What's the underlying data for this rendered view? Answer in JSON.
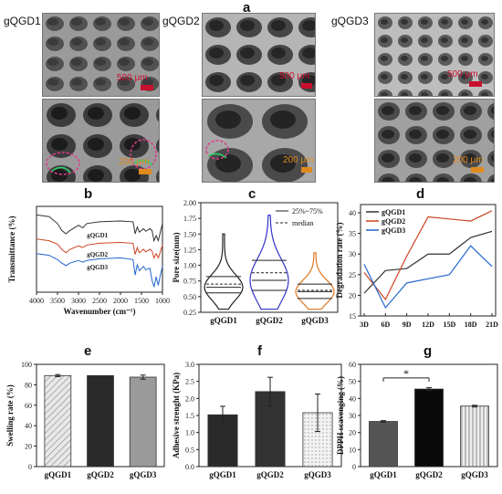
{
  "panel_letters": [
    "a",
    "b",
    "c",
    "d",
    "e",
    "f",
    "g"
  ],
  "sem": {
    "labels": [
      "gQGD1",
      "gQGD2",
      "gQGD3"
    ],
    "scale_top": "500 μm",
    "scale_bottom": "200 μm"
  },
  "colors": {
    "gqgd1": "#333333",
    "gqgd2": "#cc4422",
    "gqgd3": "#2266cc",
    "violin1": "#222222",
    "violin2": "#3333cc",
    "violin3": "#dd7722"
  },
  "chart_data": [
    {
      "id": "b",
      "type": "line",
      "xlabel": "Wavenumber (cm⁻¹)",
      "ylabel": "Transmittance (%)",
      "xlim": [
        4000,
        1000
      ],
      "x_ticks": [
        4000,
        3500,
        3000,
        2500,
        2000,
        1500,
        1000
      ],
      "series": [
        {
          "name": "gQGD1",
          "x": [
            4000,
            3700,
            3500,
            3400,
            3300,
            3200,
            3000,
            2900,
            2800,
            2500,
            2000,
            1700,
            1650,
            1600,
            1550,
            1450,
            1400,
            1300,
            1250,
            1200,
            1150,
            1100,
            1050,
            1000
          ],
          "y": [
            90,
            88,
            80,
            72,
            68,
            72,
            78,
            75,
            80,
            82,
            83,
            82,
            68,
            76,
            70,
            74,
            71,
            74,
            72,
            60,
            66,
            60,
            70,
            80
          ]
        },
        {
          "name": "gQGD2",
          "x": [
            4000,
            3700,
            3500,
            3400,
            3300,
            3200,
            3000,
            2900,
            2800,
            2500,
            2000,
            1700,
            1650,
            1600,
            1550,
            1450,
            1400,
            1300,
            1250,
            1200,
            1150,
            1100,
            1050,
            1000
          ],
          "y": [
            62,
            60,
            56,
            50,
            46,
            50,
            54,
            52,
            55,
            57,
            58,
            57,
            44,
            52,
            46,
            50,
            47,
            50,
            48,
            40,
            45,
            40,
            47,
            55
          ]
        },
        {
          "name": "gQGD3",
          "x": [
            4000,
            3700,
            3500,
            3400,
            3300,
            3200,
            3000,
            2900,
            2800,
            2500,
            2000,
            1700,
            1650,
            1600,
            1550,
            1450,
            1400,
            1300,
            1250,
            1200,
            1150,
            1100,
            1050,
            1000
          ],
          "y": [
            45,
            43,
            38,
            34,
            31,
            34,
            37,
            35,
            37,
            39,
            40,
            38,
            20,
            32,
            25,
            30,
            26,
            28,
            14,
            6,
            18,
            8,
            20,
            30
          ]
        }
      ]
    },
    {
      "id": "c",
      "type": "violin",
      "ylabel": "Pore size(mm)",
      "ylim": [
        0.25,
        2.0
      ],
      "y_ticks": [
        0.25,
        0.5,
        0.75,
        1.0,
        1.25,
        1.5,
        1.75,
        2.0
      ],
      "legend": [
        "25%~75%",
        "median"
      ],
      "groups": [
        {
          "name": "gQGD1",
          "min": 0.3,
          "max": 1.5,
          "q1": 0.56,
          "q3": 0.82,
          "median": 0.65,
          "mean": 0.7
        },
        {
          "name": "gQGD2",
          "min": 0.3,
          "max": 1.8,
          "q1": 0.6,
          "q3": 1.08,
          "median": 0.76,
          "mean": 0.88
        },
        {
          "name": "gQGD3",
          "min": 0.3,
          "max": 1.2,
          "q1": 0.47,
          "q3": 0.7,
          "median": 0.58,
          "mean": 0.6
        }
      ]
    },
    {
      "id": "d",
      "type": "line",
      "ylabel": "Degradation rate (%)",
      "ylim": [
        15,
        42
      ],
      "y_ticks": [
        15,
        20,
        25,
        30,
        35,
        40
      ],
      "categories": [
        "3D",
        "6D",
        "9D",
        "12D",
        "15D",
        "18D",
        "21D"
      ],
      "series": [
        {
          "name": "gQGD1",
          "values": [
            20.5,
            26,
            26.5,
            30,
            30,
            34,
            35.5
          ]
        },
        {
          "name": "gQGD2",
          "values": [
            25.5,
            19,
            29.5,
            39,
            38.5,
            38,
            40.5
          ]
        },
        {
          "name": "gQGD3",
          "values": [
            27.5,
            17,
            23,
            24,
            25,
            32,
            27
          ]
        }
      ]
    },
    {
      "id": "e",
      "type": "bar",
      "ylabel": "Swelling rate (%)",
      "ylim": [
        0,
        100
      ],
      "y_ticks": [
        0,
        20,
        40,
        60,
        80,
        100
      ],
      "categories": [
        "gQGD1",
        "gQGD2",
        "gQGD3"
      ],
      "values": [
        89,
        89,
        87.5
      ],
      "errors": [
        1,
        0,
        2
      ]
    },
    {
      "id": "f",
      "type": "bar",
      "ylabel": "Adhesive strenght (KPa)",
      "ylim": [
        0,
        3.0
      ],
      "y_ticks": [
        0.0,
        0.5,
        1.0,
        1.5,
        2.0,
        2.5,
        3.0
      ],
      "categories": [
        "gQGD1",
        "gQGD2",
        "gQGD3"
      ],
      "values": [
        1.52,
        2.2,
        1.58
      ],
      "errors": [
        0.25,
        0.42,
        0.55
      ]
    },
    {
      "id": "g",
      "type": "bar",
      "ylabel": "DPPH scavenging (%)",
      "ylim": [
        0,
        60
      ],
      "y_ticks": [
        0,
        10,
        20,
        30,
        40,
        50,
        60
      ],
      "categories": [
        "gQGD1",
        "gQGD2",
        "gQGD3"
      ],
      "values": [
        26.5,
        45.5,
        35.5
      ],
      "errors": [
        0.5,
        0.8,
        0.5
      ],
      "annotation": "*"
    }
  ]
}
